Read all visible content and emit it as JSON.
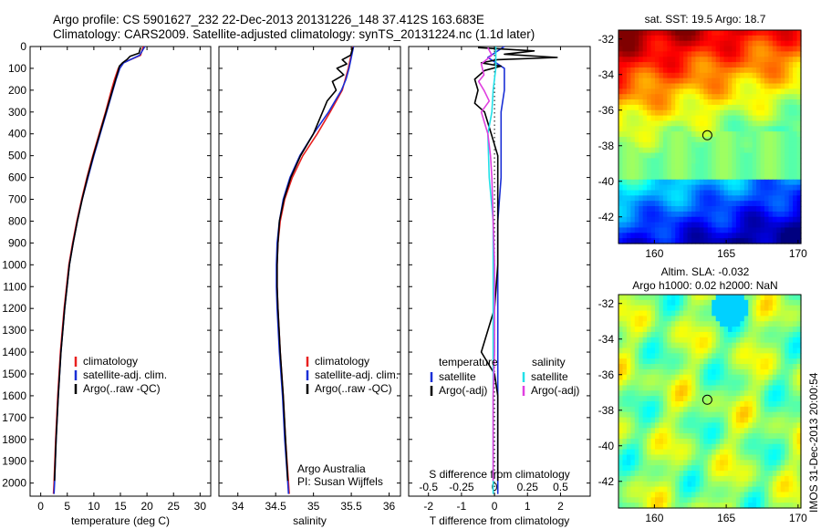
{
  "header": {
    "line1": "Argo profile: CS 5901627_232 22-Dec-2013 20131226_148 37.412S 163.683E",
    "line2": "Climatology: CARS2009. Satellite-adjusted climatology: synTS_20131224.nc (1.1d later)"
  },
  "colors": {
    "climatology": "#e8201f",
    "satellite": "#1a2fd6",
    "argo": "#000000",
    "salinity_satellite": "#22e0e8",
    "salinity_argo": "#e040e0"
  },
  "chart_data": [
    {
      "type": "line",
      "id": "temperature",
      "xlabel": "temperature (deg C)",
      "ylabel": "",
      "xlim": [
        -2,
        32
      ],
      "xticks": [
        0,
        5,
        10,
        15,
        20,
        25,
        30
      ],
      "ylim": [
        2060,
        0
      ],
      "yticks": [
        0,
        100,
        200,
        300,
        400,
        500,
        600,
        700,
        800,
        900,
        1000,
        1100,
        1200,
        1300,
        1400,
        1500,
        1600,
        1700,
        1800,
        1900,
        2000
      ],
      "legend": [
        "climatology",
        "satellite-adj. clim.",
        "Argo(..raw -QC)"
      ],
      "series": [
        {
          "name": "climatology",
          "depth": [
            0,
            40,
            75,
            100,
            150,
            200,
            300,
            400,
            500,
            600,
            700,
            800,
            900,
            1000,
            1200,
            1400,
            1600,
            1800,
            2000,
            2050
          ],
          "values": [
            19.3,
            18.8,
            15.5,
            14.6,
            13.9,
            13.3,
            12.2,
            11.0,
            9.8,
            8.7,
            7.7,
            6.8,
            6.0,
            5.3,
            4.4,
            3.7,
            3.2,
            2.8,
            2.5,
            2.4
          ]
        },
        {
          "name": "satellite-adj. clim.",
          "depth": [
            0,
            40,
            75,
            100,
            150,
            200,
            300,
            400,
            500,
            600,
            700,
            800,
            900,
            1000,
            1200,
            1400,
            1600,
            1800,
            2000,
            2050
          ],
          "values": [
            19.6,
            18.6,
            15.6,
            14.9,
            14.2,
            13.6,
            12.4,
            11.2,
            10.0,
            8.9,
            7.8,
            6.9,
            6.1,
            5.4,
            4.5,
            3.8,
            3.3,
            2.9,
            2.6,
            2.5
          ]
        },
        {
          "name": "Argo(..raw -QC)",
          "depth": [
            5,
            30,
            45,
            60,
            75,
            90,
            110,
            150,
            200,
            300,
            400,
            500,
            600,
            700,
            800,
            900,
            1000,
            1200,
            1400,
            1600,
            1800,
            1990
          ],
          "values": [
            18.8,
            18.5,
            16.8,
            16.2,
            15.4,
            14.8,
            14.6,
            14.1,
            13.5,
            12.3,
            11.1,
            9.9,
            8.8,
            7.8,
            6.9,
            6.1,
            5.4,
            4.5,
            3.8,
            3.3,
            2.9,
            2.6
          ]
        }
      ]
    },
    {
      "type": "line",
      "id": "salinity",
      "xlabel": "salinity",
      "xlim": [
        33.75,
        36.15
      ],
      "xticks": [
        34,
        34.5,
        35,
        35.5,
        36
      ],
      "xticklabels": [
        "34",
        "34.5",
        "35",
        "35.5",
        "36"
      ],
      "ylim": [
        2060,
        0
      ],
      "legend": [
        "climatology",
        "satellite-adj. clim.",
        "Argo(..raw -QC)"
      ],
      "annotations": [
        "Argo Australia",
        "PI: Susan Wijffels"
      ],
      "series": [
        {
          "name": "climatology",
          "depth": [
            0,
            50,
            100,
            150,
            200,
            300,
            400,
            500,
            600,
            700,
            800,
            900,
            1000,
            1100,
            1200,
            1400,
            1600,
            1800,
            2000,
            2050
          ],
          "values": [
            35.52,
            35.49,
            35.46,
            35.42,
            35.38,
            35.22,
            35.05,
            34.86,
            34.72,
            34.62,
            34.56,
            34.53,
            34.52,
            34.52,
            34.53,
            34.56,
            34.6,
            34.63,
            34.67,
            34.68
          ]
        },
        {
          "name": "satellite-adj. clim.",
          "depth": [
            0,
            50,
            100,
            150,
            200,
            300,
            400,
            500,
            600,
            700,
            800,
            900,
            1000,
            1100,
            1200,
            1400,
            1600,
            1800,
            2000,
            2050
          ],
          "values": [
            35.53,
            35.5,
            35.47,
            35.43,
            35.37,
            35.2,
            35.0,
            34.82,
            34.69,
            34.6,
            34.55,
            34.52,
            34.51,
            34.51,
            34.52,
            34.55,
            34.59,
            34.62,
            34.66,
            34.67
          ]
        },
        {
          "name": "Argo(..raw -QC)",
          "depth": [
            5,
            40,
            60,
            80,
            100,
            130,
            160,
            200,
            250,
            300,
            400,
            500,
            600,
            700,
            800,
            900,
            1000,
            1100,
            1200,
            1400,
            1600,
            1800,
            1990
          ],
          "values": [
            35.52,
            35.49,
            35.38,
            35.44,
            35.31,
            35.4,
            35.25,
            35.3,
            35.18,
            35.12,
            35.0,
            34.83,
            34.7,
            34.61,
            34.55,
            34.53,
            34.52,
            34.52,
            34.53,
            34.56,
            34.6,
            34.63,
            34.66
          ]
        }
      ]
    },
    {
      "type": "line",
      "id": "difference",
      "xlabel": "T difference from climatology",
      "xlabel_top": "S difference from climatology",
      "xlim": [
        -2.6,
        2.9
      ],
      "xticks": [
        -2,
        -1,
        0,
        1,
        2
      ],
      "sticks": [
        -0.5,
        -0.25,
        0,
        0.25,
        0.5
      ],
      "sticklabels": [
        "-0.5",
        "-0.25",
        "0",
        "0.25",
        "0.5"
      ],
      "ylim": [
        2060,
        0
      ],
      "legend_left": {
        "title": "temperature",
        "items": [
          "satellite",
          "Argo(-adj)"
        ]
      },
      "legend_right": {
        "title": "salinity",
        "items": [
          "satellite",
          "Argo(-adj)"
        ]
      },
      "series": [
        {
          "name": "temperature satellite",
          "depth": [
            0,
            50,
            100,
            150,
            200,
            300,
            400,
            600,
            800,
            1000,
            1200,
            1400,
            1600,
            1800,
            2000,
            2050
          ],
          "values": [
            0.3,
            -0.2,
            0.3,
            0.3,
            0.3,
            0.2,
            0.2,
            0.2,
            0.1,
            0.1,
            0.1,
            0.1,
            0.1,
            0.1,
            0.1,
            0.1
          ]
        },
        {
          "name": "temperature Argo(-adj)",
          "depth": [
            5,
            20,
            35,
            50,
            60,
            75,
            90,
            110,
            150,
            200,
            260,
            300,
            400,
            500,
            600,
            800,
            1000,
            1200,
            1400,
            1450,
            1500,
            1600,
            1800,
            1990
          ],
          "values": [
            -0.5,
            1.2,
            0.3,
            1.9,
            0.1,
            -0.4,
            0.2,
            -0.3,
            -0.6,
            -0.5,
            -0.6,
            -0.3,
            -0.1,
            0.1,
            0.1,
            0.1,
            0.1,
            0.0,
            -0.4,
            -0.2,
            0.0,
            0.1,
            0.1,
            0.1
          ]
        },
        {
          "name": "salinity satellite",
          "depth": [
            0,
            100,
            200,
            300,
            400,
            600,
            800,
            1000,
            1200,
            1400,
            1600,
            1800,
            2000,
            2050
          ],
          "values": [
            0.01,
            0.01,
            -0.01,
            -0.02,
            -0.05,
            -0.04,
            -0.01,
            -0.01,
            -0.01,
            -0.01,
            -0.01,
            -0.01,
            -0.01,
            -0.01
          ]
        },
        {
          "name": "salinity Argo(-adj)",
          "depth": [
            5,
            40,
            80,
            130,
            160,
            200,
            250,
            300,
            400,
            500,
            600,
            800,
            1000,
            1200,
            1400,
            1600,
            1800,
            1990
          ],
          "values": [
            -0.05,
            -0.02,
            -0.1,
            -0.08,
            -0.12,
            -0.08,
            -0.04,
            -0.1,
            -0.05,
            -0.03,
            -0.02,
            -0.01,
            0.0,
            0.0,
            0.0,
            -0.01,
            -0.01,
            -0.01
          ]
        }
      ]
    },
    {
      "type": "heatmap",
      "id": "sst-map",
      "title": "sat. SST: 19.5 Argo: 18.7",
      "xlim": [
        157.5,
        170.2
      ],
      "ylim": [
        -43.5,
        -31.5
      ],
      "xticks": [
        160,
        165,
        170
      ],
      "yticks": [
        -32,
        -34,
        -36,
        -38,
        -40,
        -42
      ],
      "marker": {
        "lon": 163.683,
        "lat": -37.412
      }
    },
    {
      "type": "heatmap",
      "id": "sla-map",
      "title_line1": "Altim. SLA: -0.032",
      "title_line2": "Argo h1000: 0.02 h2000: NaN",
      "xlim": [
        157.5,
        170.2
      ],
      "ylim": [
        -43.5,
        -31.5
      ],
      "xticks": [
        160,
        165,
        170
      ],
      "yticks": [
        -32,
        -34,
        -36,
        -38,
        -40,
        -42
      ],
      "marker": {
        "lon": 163.683,
        "lat": -37.412
      }
    }
  ],
  "footer": {
    "stamp": "IMOS 31-Dec-2013 20:00:54"
  }
}
